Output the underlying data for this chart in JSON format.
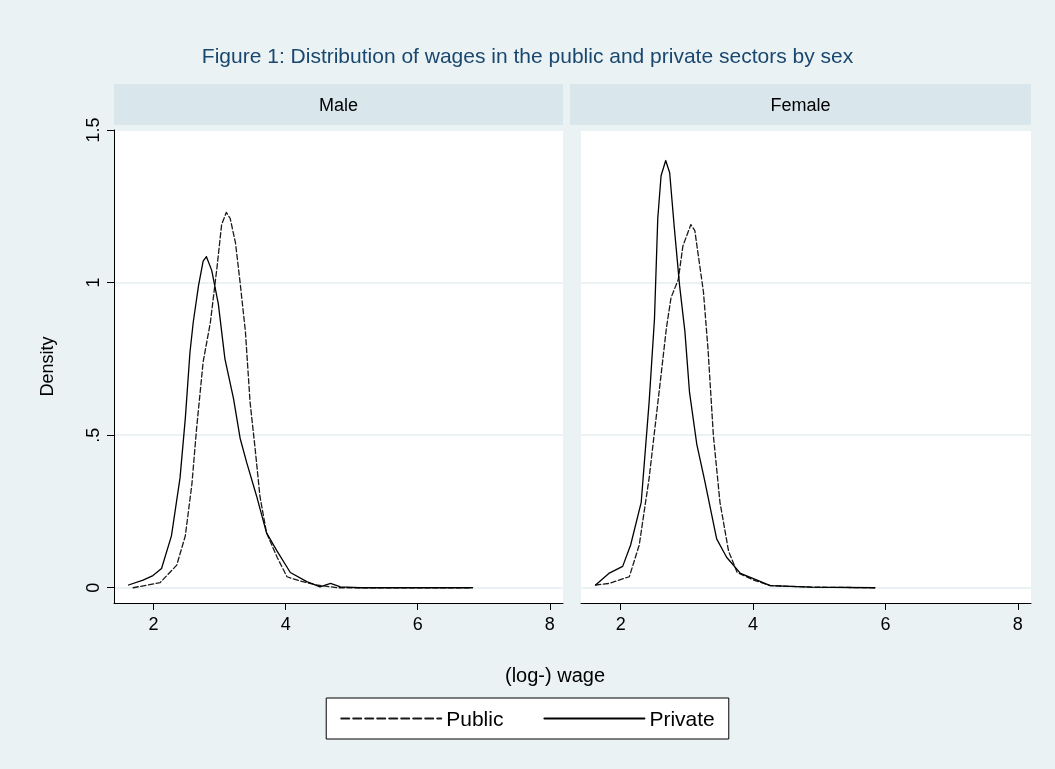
{
  "chart_data": [
    {
      "type": "line",
      "title": "Figure 1: Distribution of wages in the public and private sectors by sex",
      "subtitle": "Male",
      "xlabel": "(log-) wage",
      "ylabel": "Density",
      "legend": "bottom",
      "grid": "y",
      "xlim": [
        1.4,
        8.2
      ],
      "ylim": [
        -0.05,
        1.5
      ],
      "xticks": [
        2,
        4,
        6,
        8
      ],
      "yticks": [
        0,
        {
          "value": 0.5,
          "label": ".5"
        },
        1,
        1.5
      ],
      "series": [
        {
          "name": "Public",
          "color": "#1a1a1a",
          "line_style": "dashed",
          "x": [
            1.69,
            2.1,
            2.35,
            2.48,
            2.58,
            2.65,
            2.75,
            2.86,
            2.96,
            3.03,
            3.1,
            3.16,
            3.24,
            3.31,
            3.39,
            3.46,
            3.54,
            3.61,
            3.71,
            3.87,
            4.02,
            4.22,
            4.47,
            4.78,
            5.38,
            6.4,
            6.8
          ],
          "values": [
            0,
            0.017,
            0.074,
            0.17,
            0.34,
            0.52,
            0.74,
            0.87,
            1.05,
            1.19,
            1.23,
            1.21,
            1.13,
            1,
            0.84,
            0.61,
            0.45,
            0.3,
            0.18,
            0.1,
            0.036,
            0.022,
            0.009,
            0,
            0,
            0,
            0
          ]
        },
        {
          "name": "Private",
          "color": "#000000",
          "line_style": "solid",
          "x": [
            1.62,
            1.84,
            1.99,
            2.12,
            2.27,
            2.4,
            2.48,
            2.55,
            2.6,
            2.68,
            2.75,
            2.8,
            2.88,
            2.98,
            3.08,
            3.21,
            3.31,
            3.41,
            3.56,
            3.71,
            3.87,
            4.07,
            4.32,
            4.52,
            4.68,
            4.83,
            5.13,
            5.89,
            6.83
          ],
          "values": [
            0.009,
            0.025,
            0.04,
            0.063,
            0.17,
            0.36,
            0.555,
            0.77,
            0.87,
            0.99,
            1.07,
            1.085,
            1.04,
            0.93,
            0.75,
            0.62,
            0.49,
            0.41,
            0.3,
            0.18,
            0.12,
            0.05,
            0.02,
            0.003,
            0.014,
            0.003,
            0,
            0,
            0
          ]
        }
      ]
    },
    {
      "type": "line",
      "subtitle": "Female",
      "grid": "y",
      "tick_labels": "x",
      "xlim": [
        1.4,
        8.2
      ],
      "ylim": [
        -0.05,
        1.5
      ],
      "xticks": [
        2,
        4,
        6,
        8
      ],
      "yticks": [
        0,
        0.5,
        1,
        1.5
      ],
      "series": [
        {
          "color": "#1a1a1a",
          "line_style": "dashed",
          "x": [
            1.62,
            1.82,
            2.13,
            2.28,
            2.43,
            2.59,
            2.69,
            2.76,
            2.87,
            2.94,
            3.06,
            3.12,
            3.25,
            3.32,
            3.4,
            3.5,
            3.63,
            3.76,
            4.01,
            4.26,
            4.88,
            5.84
          ],
          "values": [
            0.009,
            0.014,
            0.036,
            0.14,
            0.36,
            0.66,
            0.85,
            0.95,
            1.01,
            1.12,
            1.19,
            1.17,
            0.97,
            0.78,
            0.5,
            0.28,
            0.12,
            0.05,
            0.025,
            0.007,
            0.002,
            0
          ]
        },
        {
          "color": "#000000",
          "line_style": "solid",
          "x": [
            1.62,
            1.82,
            2.03,
            2.15,
            2.31,
            2.43,
            2.51,
            2.56,
            2.61,
            2.68,
            2.74,
            2.81,
            2.89,
            2.97,
            3.04,
            3.15,
            3.27,
            3.45,
            3.6,
            3.81,
            4.06,
            4.26,
            4.88,
            5.84
          ],
          "values": [
            0.009,
            0.047,
            0.07,
            0.14,
            0.28,
            0.61,
            0.88,
            1.21,
            1.35,
            1.4,
            1.36,
            1.18,
            0.99,
            0.84,
            0.64,
            0.47,
            0.35,
            0.16,
            0.1,
            0.047,
            0.025,
            0.007,
            0.002,
            0
          ]
        }
      ]
    }
  ]
}
